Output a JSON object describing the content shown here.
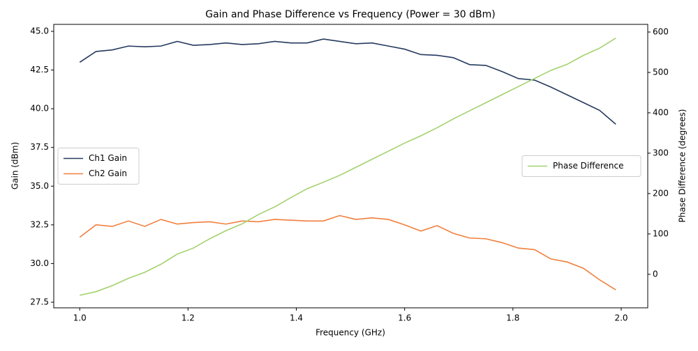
{
  "chart_data": {
    "type": "line",
    "title": "Gain and Phase Difference vs Frequency (Power = 30 dBm)",
    "xlabel": "Frequency (GHz)",
    "ylabel": "Gain (dBm)",
    "y2label": "Phase Difference (degrees)",
    "x": [
      1.0,
      1.03,
      1.06,
      1.09,
      1.12,
      1.15,
      1.18,
      1.21,
      1.24,
      1.27,
      1.3,
      1.33,
      1.36,
      1.39,
      1.42,
      1.45,
      1.48,
      1.51,
      1.54,
      1.57,
      1.6,
      1.63,
      1.66,
      1.69,
      1.72,
      1.75,
      1.78,
      1.81,
      1.84,
      1.87,
      1.9,
      1.93,
      1.96,
      1.99
    ],
    "series": [
      {
        "name": "Ch1 Gain",
        "color": "#243a5e",
        "axis": "y",
        "values": [
          43.0,
          43.7,
          43.8,
          44.05,
          44.0,
          44.05,
          44.35,
          44.1,
          44.15,
          44.25,
          44.15,
          44.2,
          44.35,
          44.25,
          44.25,
          44.5,
          44.35,
          44.2,
          44.25,
          44.05,
          43.85,
          43.5,
          43.45,
          43.3,
          42.85,
          42.8,
          42.4,
          41.95,
          41.85,
          41.4,
          40.9,
          40.4,
          39.9,
          39.0
        ]
      },
      {
        "name": "Ch2 Gain",
        "color": "#f07f3c",
        "axis": "y",
        "values": [
          31.7,
          32.5,
          32.4,
          32.75,
          32.4,
          32.85,
          32.55,
          32.65,
          32.7,
          32.55,
          32.75,
          32.7,
          32.85,
          32.8,
          32.75,
          32.75,
          33.1,
          32.85,
          32.95,
          32.85,
          32.5,
          32.1,
          32.45,
          31.95,
          31.65,
          31.6,
          31.35,
          31.0,
          30.9,
          30.3,
          30.1,
          29.7,
          28.95,
          28.3
        ]
      },
      {
        "name": "Phase Difference",
        "color": "#a3d16e",
        "axis": "y2",
        "values": [
          -52,
          -43,
          -28,
          -10,
          5,
          25,
          50,
          65,
          88,
          108,
          125,
          148,
          167,
          190,
          212,
          228,
          245,
          265,
          285,
          305,
          325,
          343,
          363,
          385,
          405,
          425,
          445,
          465,
          485,
          505,
          520,
          542,
          560,
          585
        ]
      }
    ],
    "xlim": [
      0.952,
      2.049
    ],
    "xticks": [
      {
        "value": 1,
        "label": "1.0"
      },
      1.2,
      1.4,
      1.6,
      1.8,
      {
        "value": 2,
        "label": "2.0"
      }
    ],
    "ylim": [
      27.14,
      45.45
    ],
    "yticks": [
      27.5,
      {
        "value": 30,
        "label": "30.0"
      },
      32.5,
      {
        "value": 35,
        "label": "35.0"
      },
      37.5,
      {
        "value": 40,
        "label": "40.0"
      },
      42.5,
      {
        "value": 45,
        "label": "45.0"
      }
    ],
    "y2lim": [
      -83,
      619
    ],
    "y2ticks": [
      0,
      100,
      200,
      300,
      400,
      500,
      600
    ],
    "legend_y": "center left",
    "legend_y2": "center right",
    "grid": false
  }
}
